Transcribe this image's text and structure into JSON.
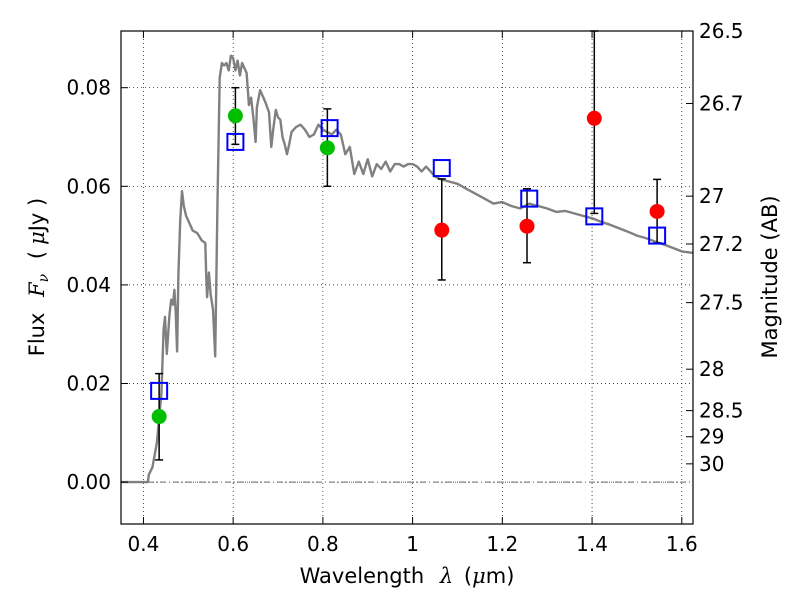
{
  "chart_data": {
    "type": "scatter",
    "title": "",
    "xlabel": {
      "prefix": "Wavelength",
      "symbol": "λ",
      "unit_open": "(",
      "unit_mu": "μ",
      "unit_rest": "m)"
    },
    "ylabel": {
      "prefix": "Flux",
      "symbol": "F",
      "subscript": "ν",
      "unit_open": "(",
      "unit_mu": "μ",
      "unit_rest": "Jy )"
    },
    "y2label": "Magnitude (AB)",
    "xlim": [
      0.35,
      1.625
    ],
    "ylim": [
      -0.0085,
      0.0915
    ],
    "grid": true,
    "x_ticks": [
      {
        "v": 0.4,
        "label": "0.4"
      },
      {
        "v": 0.6,
        "label": "0.6"
      },
      {
        "v": 0.8,
        "label": "0.8"
      },
      {
        "v": 1.0,
        "label": "1"
      },
      {
        "v": 1.2,
        "label": "1.2"
      },
      {
        "v": 1.4,
        "label": "1.4"
      },
      {
        "v": 1.6,
        "label": "1.6"
      }
    ],
    "y_ticks": [
      {
        "v": 0.0,
        "label": "0.00"
      },
      {
        "v": 0.02,
        "label": "0.02"
      },
      {
        "v": 0.04,
        "label": "0.04"
      },
      {
        "v": 0.06,
        "label": "0.06"
      },
      {
        "v": 0.08,
        "label": "0.08"
      }
    ],
    "mag_ticks": [
      {
        "v": 0.0915,
        "label": "26.5"
      },
      {
        "v": 0.0768,
        "label": "26.7"
      },
      {
        "v": 0.058,
        "label": "27"
      },
      {
        "v": 0.0483,
        "label": "27.2"
      },
      {
        "v": 0.0364,
        "label": "27.5"
      },
      {
        "v": 0.0229,
        "label": "28"
      },
      {
        "v": 0.0145,
        "label": "28.5"
      },
      {
        "v": 0.0092,
        "label": "29"
      },
      {
        "v": 0.0037,
        "label": "30"
      }
    ],
    "series": [
      {
        "marker": "line",
        "color": "#808080",
        "points": [
          [
            0.35,
            0.0
          ],
          [
            0.41,
            0.0
          ],
          [
            0.412,
            0.0015
          ],
          [
            0.42,
            0.003
          ],
          [
            0.43,
            0.008
          ],
          [
            0.44,
            0.018
          ],
          [
            0.445,
            0.031
          ],
          [
            0.448,
            0.0335
          ],
          [
            0.452,
            0.026
          ],
          [
            0.458,
            0.034
          ],
          [
            0.462,
            0.037
          ],
          [
            0.466,
            0.036
          ],
          [
            0.469,
            0.039
          ],
          [
            0.472,
            0.0345
          ],
          [
            0.475,
            0.0265
          ],
          [
            0.478,
            0.042
          ],
          [
            0.482,
            0.053
          ],
          [
            0.486,
            0.059
          ],
          [
            0.49,
            0.056
          ],
          [
            0.495,
            0.054
          ],
          [
            0.5,
            0.053
          ],
          [
            0.51,
            0.051
          ],
          [
            0.52,
            0.0505
          ],
          [
            0.53,
            0.049
          ],
          [
            0.538,
            0.0485
          ],
          [
            0.54,
            0.042
          ],
          [
            0.542,
            0.0375
          ],
          [
            0.546,
            0.0425
          ],
          [
            0.55,
            0.038
          ],
          [
            0.555,
            0.035
          ],
          [
            0.56,
            0.0255
          ],
          [
            0.565,
            0.057
          ],
          [
            0.57,
            0.082
          ],
          [
            0.575,
            0.085
          ],
          [
            0.58,
            0.0845
          ],
          [
            0.585,
            0.085
          ],
          [
            0.59,
            0.0835
          ],
          [
            0.595,
            0.0865
          ],
          [
            0.6,
            0.086
          ],
          [
            0.605,
            0.0835
          ],
          [
            0.61,
            0.0855
          ],
          [
            0.615,
            0.0825
          ],
          [
            0.62,
            0.085
          ],
          [
            0.63,
            0.083
          ],
          [
            0.635,
            0.0765
          ],
          [
            0.64,
            0.078
          ],
          [
            0.645,
            0.074
          ],
          [
            0.65,
            0.069
          ],
          [
            0.653,
            0.076
          ],
          [
            0.66,
            0.0795
          ],
          [
            0.665,
            0.0785
          ],
          [
            0.672,
            0.077
          ],
          [
            0.68,
            0.075
          ],
          [
            0.685,
            0.068
          ],
          [
            0.69,
            0.072
          ],
          [
            0.695,
            0.0755
          ],
          [
            0.7,
            0.074
          ],
          [
            0.705,
            0.0735
          ],
          [
            0.71,
            0.07
          ],
          [
            0.715,
            0.0685
          ],
          [
            0.72,
            0.0665
          ],
          [
            0.725,
            0.0685
          ],
          [
            0.73,
            0.071
          ],
          [
            0.74,
            0.072
          ],
          [
            0.75,
            0.0725
          ],
          [
            0.76,
            0.0715
          ],
          [
            0.77,
            0.07
          ],
          [
            0.78,
            0.0705
          ],
          [
            0.79,
            0.0725
          ],
          [
            0.8,
            0.0715
          ],
          [
            0.81,
            0.071
          ],
          [
            0.82,
            0.0705
          ],
          [
            0.83,
            0.0715
          ],
          [
            0.84,
            0.0705
          ],
          [
            0.85,
            0.0665
          ],
          [
            0.86,
            0.068
          ],
          [
            0.87,
            0.0625
          ],
          [
            0.88,
            0.065
          ],
          [
            0.89,
            0.0625
          ],
          [
            0.9,
            0.0655
          ],
          [
            0.91,
            0.062
          ],
          [
            0.92,
            0.0645
          ],
          [
            0.93,
            0.0635
          ],
          [
            0.94,
            0.065
          ],
          [
            0.95,
            0.063
          ],
          [
            0.96,
            0.0645
          ],
          [
            0.97,
            0.0645
          ],
          [
            0.98,
            0.064
          ],
          [
            0.99,
            0.0645
          ],
          [
            1.0,
            0.0645
          ],
          [
            1.01,
            0.064
          ],
          [
            1.02,
            0.063
          ],
          [
            1.03,
            0.064
          ],
          [
            1.04,
            0.063
          ],
          [
            1.05,
            0.062
          ],
          [
            1.06,
            0.0615
          ],
          [
            1.08,
            0.061
          ],
          [
            1.1,
            0.0605
          ],
          [
            1.12,
            0.0595
          ],
          [
            1.14,
            0.0585
          ],
          [
            1.16,
            0.0575
          ],
          [
            1.18,
            0.0565
          ],
          [
            1.2,
            0.0568
          ],
          [
            1.22,
            0.056
          ],
          [
            1.24,
            0.0555
          ],
          [
            1.26,
            0.0565
          ],
          [
            1.28,
            0.056
          ],
          [
            1.3,
            0.0555
          ],
          [
            1.32,
            0.0548
          ],
          [
            1.34,
            0.055
          ],
          [
            1.36,
            0.0545
          ],
          [
            1.38,
            0.054
          ],
          [
            1.4,
            0.0535
          ],
          [
            1.42,
            0.0528
          ],
          [
            1.44,
            0.0522
          ],
          [
            1.46,
            0.0515
          ],
          [
            1.48,
            0.0508
          ],
          [
            1.5,
            0.05
          ],
          [
            1.52,
            0.0495
          ],
          [
            1.54,
            0.0488
          ],
          [
            1.56,
            0.0482
          ],
          [
            1.58,
            0.0475
          ],
          [
            1.6,
            0.0468
          ],
          [
            1.625,
            0.0465
          ]
        ]
      },
      {
        "marker": "square-open",
        "color": "#0000ff",
        "points": [
          [
            0.435,
            0.0185
          ],
          [
            0.605,
            0.069
          ],
          [
            0.815,
            0.0718
          ],
          [
            1.065,
            0.0637
          ],
          [
            1.26,
            0.0575
          ],
          [
            1.405,
            0.0539
          ],
          [
            1.545,
            0.05
          ]
        ]
      },
      {
        "marker": "circle",
        "color": "#00bf00",
        "points": [
          [
            0.435,
            0.0133
          ],
          [
            0.605,
            0.0743
          ],
          [
            0.81,
            0.0678
          ]
        ]
      },
      {
        "marker": "circle",
        "color": "#ff0000",
        "points": [
          [
            1.065,
            0.0511
          ],
          [
            1.255,
            0.0519
          ],
          [
            1.405,
            0.0738
          ],
          [
            1.545,
            0.0549
          ]
        ]
      }
    ],
    "error_bars": [
      {
        "x": 0.435,
        "y": 0.0133,
        "low": 0.0045,
        "high": 0.022
      },
      {
        "x": 0.605,
        "y": 0.0743,
        "low": 0.0685,
        "high": 0.08
      },
      {
        "x": 0.81,
        "y": 0.0678,
        "low": 0.06,
        "high": 0.0757
      },
      {
        "x": 1.065,
        "y": 0.0511,
        "low": 0.041,
        "high": 0.0615
      },
      {
        "x": 1.255,
        "y": 0.0519,
        "low": 0.0445,
        "high": 0.0595
      },
      {
        "x": 1.405,
        "y": 0.0738,
        "low": 0.0545,
        "high": 0.0915
      },
      {
        "x": 1.545,
        "y": 0.0549,
        "low": 0.0485,
        "high": 0.0614
      }
    ],
    "zero_line": {
      "y": 0.0,
      "style": "dash-dot",
      "color": "#666666"
    }
  }
}
